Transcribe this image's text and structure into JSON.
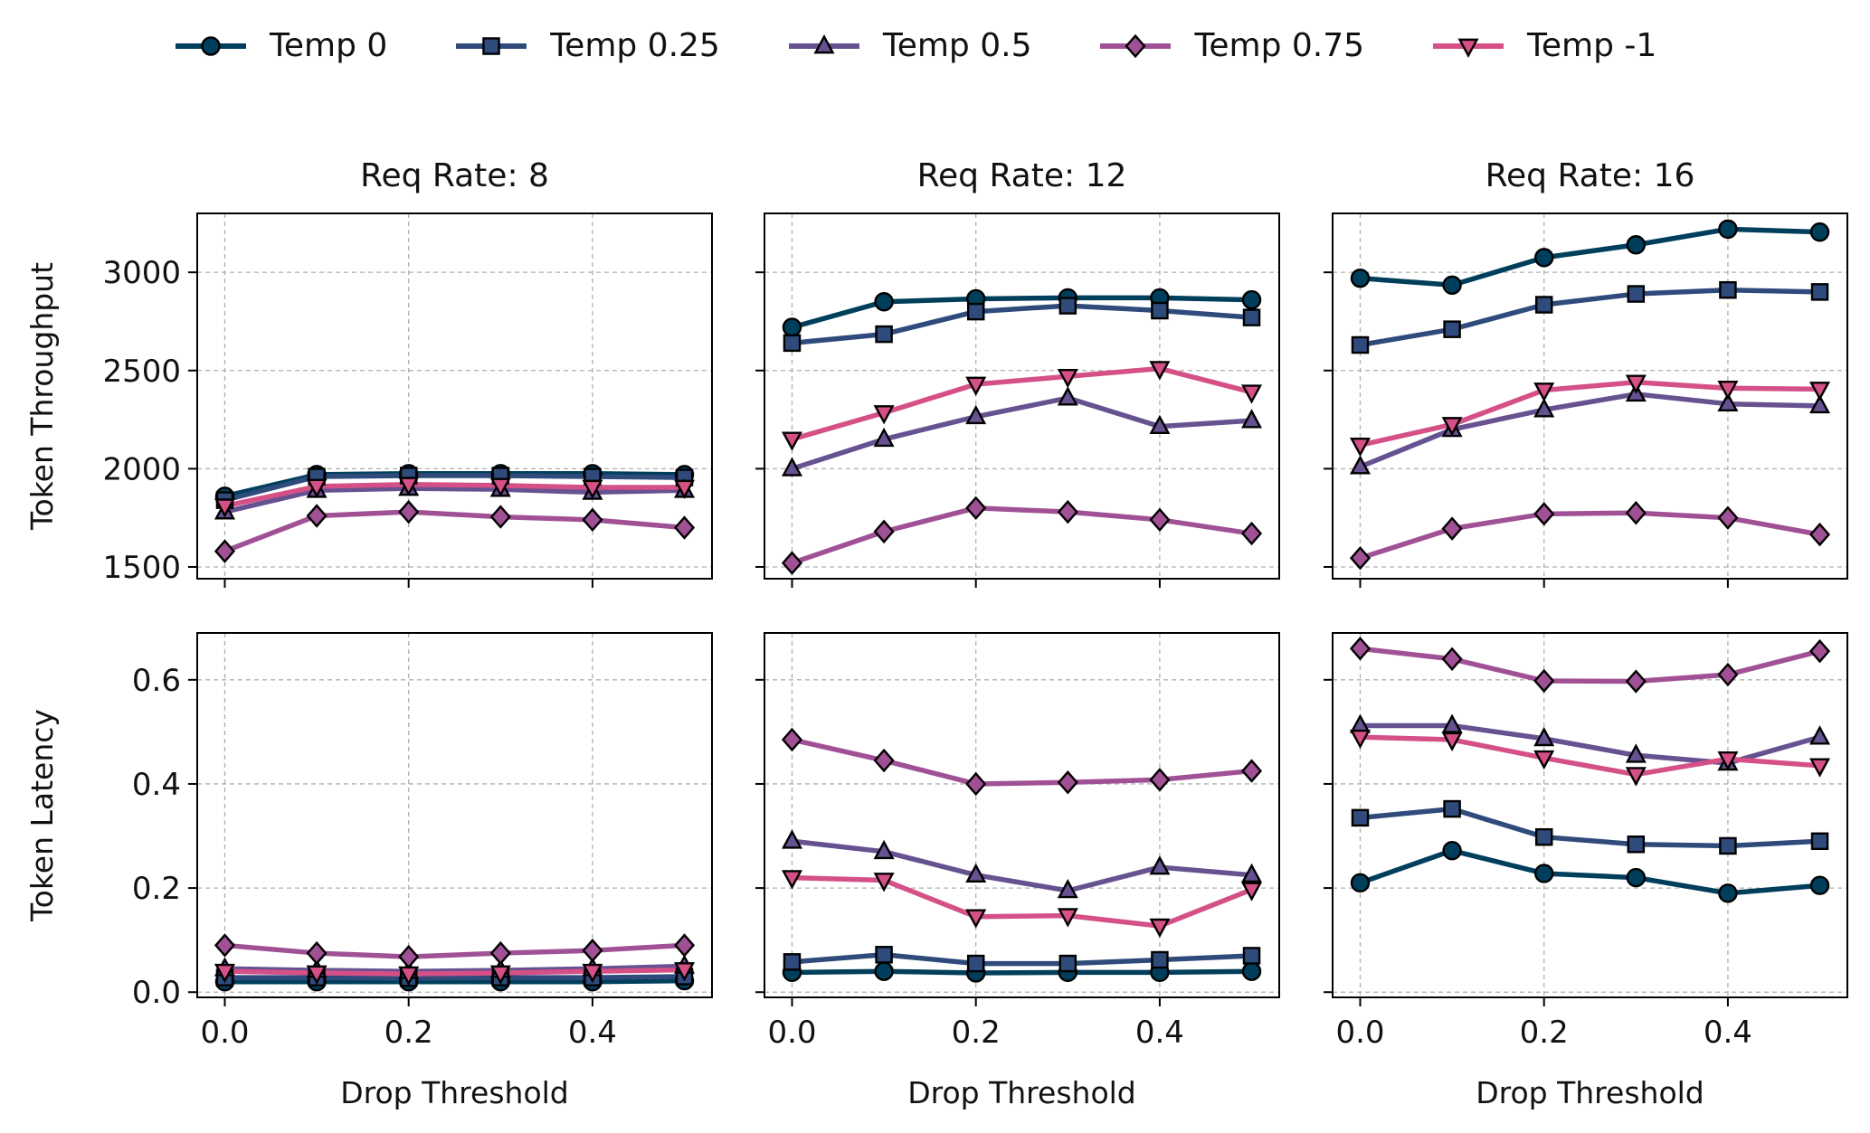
{
  "chart_data": {
    "type": "line",
    "layout": "2 rows x 3 columns, shared x-axis per column, shared y-axis per row",
    "legend": {
      "placement": "top",
      "entries": [
        "Temp 0",
        "Temp 0.25",
        "Temp 0.5",
        "Temp 0.75",
        "Temp -1"
      ]
    },
    "series_styles": [
      {
        "name": "Temp 0",
        "color": "#003f5c",
        "marker": "circle"
      },
      {
        "name": "Temp 0.25",
        "color": "#2f4b7c",
        "marker": "square"
      },
      {
        "name": "Temp 0.5",
        "color": "#665191",
        "marker": "triangle-up"
      },
      {
        "name": "Temp 0.75",
        "color": "#a05195",
        "marker": "diamond"
      },
      {
        "name": "Temp -1",
        "color": "#d45087",
        "marker": "triangle-down"
      }
    ],
    "x": [
      0.0,
      0.1,
      0.2,
      0.3,
      0.4,
      0.5
    ],
    "xlabel": "Drop Threshold",
    "xlim": [
      -0.03,
      0.53
    ],
    "xticks": [
      "0.0",
      "0.2",
      "0.4"
    ],
    "xtick_values": [
      0.0,
      0.2,
      0.4
    ],
    "grid": true,
    "rows": [
      {
        "ylabel": "Token Throughput",
        "ylim": [
          1440,
          3300
        ],
        "yticks": [
          "1500",
          "2000",
          "2500",
          "3000"
        ],
        "ytick_values": [
          1500,
          2000,
          2500,
          3000
        ]
      },
      {
        "ylabel": "Token Latency",
        "ylim": [
          -0.01,
          0.69
        ],
        "yticks": [
          "0.0",
          "0.2",
          "0.4",
          "0.6"
        ],
        "ytick_values": [
          0.0,
          0.2,
          0.4,
          0.6
        ]
      }
    ],
    "columns": [
      {
        "title": "Req Rate: 8"
      },
      {
        "title": "Req Rate: 12"
      },
      {
        "title": "Req Rate: 16"
      }
    ],
    "panels": [
      {
        "row": 0,
        "col": 0,
        "series": [
          {
            "name": "Temp 0",
            "values": [
              1860,
              1970,
              1975,
              1975,
              1975,
              1970
            ]
          },
          {
            "name": "Temp 0.25",
            "values": [
              1840,
              1960,
              1965,
              1965,
              1960,
              1955
            ]
          },
          {
            "name": "Temp 0.5",
            "values": [
              1780,
              1890,
              1900,
              1895,
              1880,
              1890
            ]
          },
          {
            "name": "Temp 0.75",
            "values": [
              1580,
              1760,
              1780,
              1755,
              1740,
              1700
            ]
          },
          {
            "name": "Temp -1",
            "values": [
              1810,
              1910,
              1920,
              1915,
              1905,
              1905
            ]
          }
        ]
      },
      {
        "row": 0,
        "col": 1,
        "series": [
          {
            "name": "Temp 0",
            "values": [
              2720,
              2850,
              2865,
              2870,
              2870,
              2860
            ]
          },
          {
            "name": "Temp 0.25",
            "values": [
              2640,
              2685,
              2800,
              2830,
              2805,
              2770
            ]
          },
          {
            "name": "Temp 0.5",
            "values": [
              2000,
              2150,
              2265,
              2360,
              2215,
              2245
            ]
          },
          {
            "name": "Temp 0.75",
            "values": [
              1520,
              1680,
              1800,
              1780,
              1740,
              1670
            ]
          },
          {
            "name": "Temp -1",
            "values": [
              2150,
              2285,
              2430,
              2470,
              2510,
              2390
            ]
          }
        ]
      },
      {
        "row": 0,
        "col": 2,
        "series": [
          {
            "name": "Temp 0",
            "values": [
              2970,
              2935,
              3075,
              3140,
              3220,
              3205
            ]
          },
          {
            "name": "Temp 0.25",
            "values": [
              2630,
              2710,
              2835,
              2890,
              2910,
              2900
            ]
          },
          {
            "name": "Temp 0.5",
            "values": [
              2010,
              2200,
              2300,
              2380,
              2330,
              2320
            ]
          },
          {
            "name": "Temp 0.75",
            "values": [
              1545,
              1695,
              1770,
              1775,
              1750,
              1665
            ]
          },
          {
            "name": "Temp -1",
            "values": [
              2120,
              2225,
              2400,
              2440,
              2410,
              2405
            ]
          }
        ]
      },
      {
        "row": 1,
        "col": 0,
        "series": [
          {
            "name": "Temp 0",
            "values": [
              0.02,
              0.02,
              0.02,
              0.02,
              0.02,
              0.022
            ]
          },
          {
            "name": "Temp 0.25",
            "values": [
              0.028,
              0.028,
              0.027,
              0.028,
              0.028,
              0.03
            ]
          },
          {
            "name": "Temp 0.5",
            "values": [
              0.045,
              0.042,
              0.04,
              0.042,
              0.045,
              0.05
            ]
          },
          {
            "name": "Temp 0.75",
            "values": [
              0.09,
              0.075,
              0.068,
              0.075,
              0.08,
              0.09
            ]
          },
          {
            "name": "Temp -1",
            "values": [
              0.04,
              0.037,
              0.035,
              0.037,
              0.04,
              0.043
            ]
          }
        ]
      },
      {
        "row": 1,
        "col": 1,
        "series": [
          {
            "name": "Temp 0",
            "values": [
              0.038,
              0.04,
              0.037,
              0.038,
              0.038,
              0.04
            ]
          },
          {
            "name": "Temp 0.25",
            "values": [
              0.058,
              0.072,
              0.055,
              0.055,
              0.062,
              0.07
            ]
          },
          {
            "name": "Temp 0.5",
            "values": [
              0.29,
              0.27,
              0.225,
              0.195,
              0.24,
              0.225
            ]
          },
          {
            "name": "Temp 0.75",
            "values": [
              0.485,
              0.445,
              0.4,
              0.403,
              0.408,
              0.425
            ]
          },
          {
            "name": "Temp -1",
            "values": [
              0.22,
              0.215,
              0.145,
              0.147,
              0.127,
              0.197
            ]
          }
        ]
      },
      {
        "row": 1,
        "col": 2,
        "series": [
          {
            "name": "Temp 0",
            "values": [
              0.21,
              0.272,
              0.228,
              0.22,
              0.19,
              0.205
            ]
          },
          {
            "name": "Temp 0.25",
            "values": [
              0.335,
              0.352,
              0.298,
              0.284,
              0.281,
              0.29
            ]
          },
          {
            "name": "Temp 0.5",
            "values": [
              0.512,
              0.512,
              0.487,
              0.455,
              0.44,
              0.49
            ]
          },
          {
            "name": "Temp 0.75",
            "values": [
              0.66,
              0.64,
              0.598,
              0.597,
              0.61,
              0.655
            ]
          },
          {
            "name": "Temp -1",
            "values": [
              0.49,
              0.485,
              0.45,
              0.418,
              0.448,
              0.435
            ]
          }
        ]
      }
    ]
  }
}
